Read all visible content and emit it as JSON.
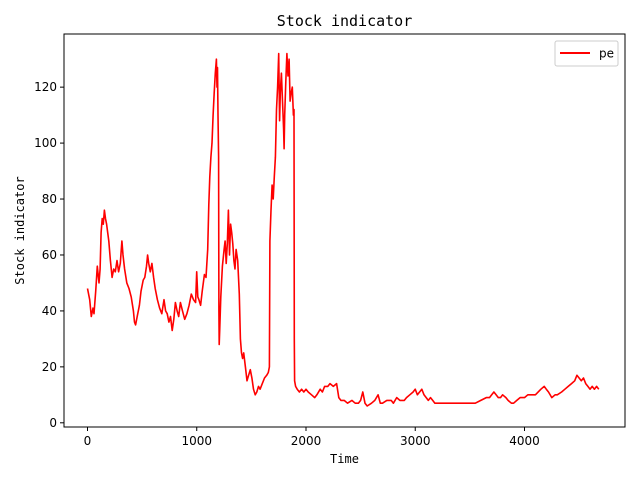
{
  "chart_data": {
    "type": "line",
    "title": "Stock indicator",
    "xlabel": "Time",
    "ylabel": "Stock indicator",
    "xlim": [
      -215,
      4920
    ],
    "ylim": [
      -1.5,
      139
    ],
    "xticks": [
      0,
      1000,
      2000,
      3000,
      4000
    ],
    "yticks": [
      0,
      20,
      40,
      60,
      80,
      100,
      120
    ],
    "grid": false,
    "legend": {
      "position": "top-right"
    },
    "series": [
      {
        "name": "pe",
        "color": "#ff0000",
        "points": [
          [
            0,
            48
          ],
          [
            20,
            44
          ],
          [
            35,
            38
          ],
          [
            50,
            41
          ],
          [
            60,
            39
          ],
          [
            75,
            47
          ],
          [
            90,
            56
          ],
          [
            105,
            50
          ],
          [
            115,
            55
          ],
          [
            125,
            68
          ],
          [
            135,
            73
          ],
          [
            145,
            71
          ],
          [
            155,
            76
          ],
          [
            165,
            73
          ],
          [
            175,
            71
          ],
          [
            185,
            68
          ],
          [
            195,
            65
          ],
          [
            210,
            58
          ],
          [
            225,
            52
          ],
          [
            240,
            55
          ],
          [
            255,
            54
          ],
          [
            270,
            58
          ],
          [
            285,
            54
          ],
          [
            300,
            57
          ],
          [
            315,
            65
          ],
          [
            325,
            60
          ],
          [
            340,
            55
          ],
          [
            360,
            50
          ],
          [
            380,
            48
          ],
          [
            400,
            45
          ],
          [
            420,
            40
          ],
          [
            430,
            36
          ],
          [
            440,
            35
          ],
          [
            455,
            38
          ],
          [
            475,
            42
          ],
          [
            490,
            47
          ],
          [
            510,
            51
          ],
          [
            525,
            52
          ],
          [
            540,
            56
          ],
          [
            550,
            60
          ],
          [
            560,
            57
          ],
          [
            575,
            54
          ],
          [
            590,
            57
          ],
          [
            605,
            52
          ],
          [
            620,
            48
          ],
          [
            640,
            44
          ],
          [
            660,
            41
          ],
          [
            680,
            39
          ],
          [
            700,
            44
          ],
          [
            715,
            40
          ],
          [
            730,
            39
          ],
          [
            745,
            36
          ],
          [
            760,
            38
          ],
          [
            775,
            33
          ],
          [
            790,
            37
          ],
          [
            805,
            43
          ],
          [
            820,
            40
          ],
          [
            835,
            38
          ],
          [
            850,
            43
          ],
          [
            870,
            40
          ],
          [
            890,
            37
          ],
          [
            910,
            39
          ],
          [
            930,
            42
          ],
          [
            950,
            46
          ],
          [
            970,
            44
          ],
          [
            990,
            43
          ],
          [
            1000,
            54
          ],
          [
            1010,
            45
          ],
          [
            1020,
            44
          ],
          [
            1035,
            42
          ],
          [
            1050,
            47
          ],
          [
            1070,
            53
          ],
          [
            1085,
            52
          ],
          [
            1100,
            62
          ],
          [
            1110,
            78
          ],
          [
            1120,
            88
          ],
          [
            1130,
            95
          ],
          [
            1140,
            100
          ],
          [
            1150,
            110
          ],
          [
            1160,
            118
          ],
          [
            1170,
            125
          ],
          [
            1180,
            130
          ],
          [
            1185,
            120
          ],
          [
            1190,
            127
          ],
          [
            1195,
            110
          ],
          [
            1200,
            95
          ],
          [
            1203,
            40
          ],
          [
            1206,
            28
          ],
          [
            1210,
            33
          ],
          [
            1220,
            45
          ],
          [
            1235,
            56
          ],
          [
            1250,
            62
          ],
          [
            1260,
            65
          ],
          [
            1270,
            57
          ],
          [
            1280,
            64
          ],
          [
            1290,
            76
          ],
          [
            1300,
            60
          ],
          [
            1310,
            71
          ],
          [
            1320,
            68
          ],
          [
            1330,
            64
          ],
          [
            1340,
            58
          ],
          [
            1350,
            55
          ],
          [
            1360,
            62
          ],
          [
            1375,
            58
          ],
          [
            1390,
            46
          ],
          [
            1400,
            30
          ],
          [
            1410,
            25
          ],
          [
            1420,
            23
          ],
          [
            1430,
            25
          ],
          [
            1445,
            20
          ],
          [
            1460,
            15
          ],
          [
            1475,
            17
          ],
          [
            1490,
            19
          ],
          [
            1505,
            16
          ],
          [
            1520,
            12
          ],
          [
            1535,
            10
          ],
          [
            1550,
            11
          ],
          [
            1565,
            13
          ],
          [
            1580,
            12
          ],
          [
            1600,
            14
          ],
          [
            1620,
            16
          ],
          [
            1640,
            17
          ],
          [
            1655,
            18
          ],
          [
            1665,
            20
          ],
          [
            1670,
            65
          ],
          [
            1680,
            76
          ],
          [
            1690,
            85
          ],
          [
            1700,
            80
          ],
          [
            1710,
            88
          ],
          [
            1720,
            95
          ],
          [
            1730,
            112
          ],
          [
            1740,
            120
          ],
          [
            1750,
            132
          ],
          [
            1758,
            108
          ],
          [
            1765,
            118
          ],
          [
            1775,
            125
          ],
          [
            1785,
            115
          ],
          [
            1795,
            105
          ],
          [
            1800,
            98
          ],
          [
            1805,
            110
          ],
          [
            1815,
            122
          ],
          [
            1825,
            132
          ],
          [
            1835,
            124
          ],
          [
            1845,
            130
          ],
          [
            1855,
            115
          ],
          [
            1865,
            118
          ],
          [
            1875,
            120
          ],
          [
            1885,
            110
          ],
          [
            1890,
            112
          ],
          [
            1893,
            30
          ],
          [
            1896,
            15
          ],
          [
            1905,
            13
          ],
          [
            1920,
            12
          ],
          [
            1940,
            11
          ],
          [
            1960,
            12
          ],
          [
            1980,
            11
          ],
          [
            2000,
            12
          ],
          [
            2020,
            11
          ],
          [
            2050,
            10
          ],
          [
            2080,
            9
          ],
          [
            2100,
            10
          ],
          [
            2130,
            12
          ],
          [
            2150,
            11
          ],
          [
            2170,
            13
          ],
          [
            2200,
            13
          ],
          [
            2220,
            14
          ],
          [
            2250,
            13
          ],
          [
            2280,
            14
          ],
          [
            2300,
            9
          ],
          [
            2320,
            8
          ],
          [
            2350,
            8
          ],
          [
            2380,
            7
          ],
          [
            2420,
            8
          ],
          [
            2450,
            7
          ],
          [
            2480,
            7
          ],
          [
            2500,
            8
          ],
          [
            2520,
            11
          ],
          [
            2540,
            7
          ],
          [
            2560,
            6
          ],
          [
            2600,
            7
          ],
          [
            2630,
            8
          ],
          [
            2660,
            10
          ],
          [
            2680,
            7
          ],
          [
            2700,
            7
          ],
          [
            2740,
            8
          ],
          [
            2780,
            8
          ],
          [
            2800,
            7
          ],
          [
            2830,
            9
          ],
          [
            2860,
            8
          ],
          [
            2900,
            8
          ],
          [
            2920,
            9
          ],
          [
            2950,
            10
          ],
          [
            2980,
            11
          ],
          [
            3000,
            12
          ],
          [
            3020,
            10
          ],
          [
            3040,
            11
          ],
          [
            3060,
            12
          ],
          [
            3080,
            10
          ],
          [
            3100,
            9
          ],
          [
            3120,
            8
          ],
          [
            3140,
            9
          ],
          [
            3160,
            8
          ],
          [
            3180,
            7
          ],
          [
            3200,
            7
          ],
          [
            3250,
            7
          ],
          [
            3300,
            7
          ],
          [
            3350,
            7
          ],
          [
            3400,
            7
          ],
          [
            3450,
            7
          ],
          [
            3500,
            7
          ],
          [
            3550,
            7
          ],
          [
            3600,
            8
          ],
          [
            3650,
            9
          ],
          [
            3680,
            9
          ],
          [
            3700,
            10
          ],
          [
            3720,
            11
          ],
          [
            3740,
            10
          ],
          [
            3760,
            9
          ],
          [
            3780,
            9
          ],
          [
            3800,
            10
          ],
          [
            3830,
            9
          ],
          [
            3850,
            8
          ],
          [
            3880,
            7
          ],
          [
            3900,
            7
          ],
          [
            3930,
            8
          ],
          [
            3960,
            9
          ],
          [
            4000,
            9
          ],
          [
            4030,
            10
          ],
          [
            4060,
            10
          ],
          [
            4100,
            10
          ],
          [
            4150,
            12
          ],
          [
            4180,
            13
          ],
          [
            4200,
            12
          ],
          [
            4220,
            11
          ],
          [
            4250,
            9
          ],
          [
            4280,
            10
          ],
          [
            4300,
            10
          ],
          [
            4340,
            11
          ],
          [
            4370,
            12
          ],
          [
            4400,
            13
          ],
          [
            4430,
            14
          ],
          [
            4460,
            15
          ],
          [
            4480,
            17
          ],
          [
            4500,
            16
          ],
          [
            4520,
            15
          ],
          [
            4540,
            16
          ],
          [
            4560,
            14
          ],
          [
            4580,
            13
          ],
          [
            4600,
            12
          ],
          [
            4620,
            13
          ],
          [
            4640,
            12
          ],
          [
            4660,
            13
          ],
          [
            4680,
            12
          ]
        ]
      }
    ]
  }
}
